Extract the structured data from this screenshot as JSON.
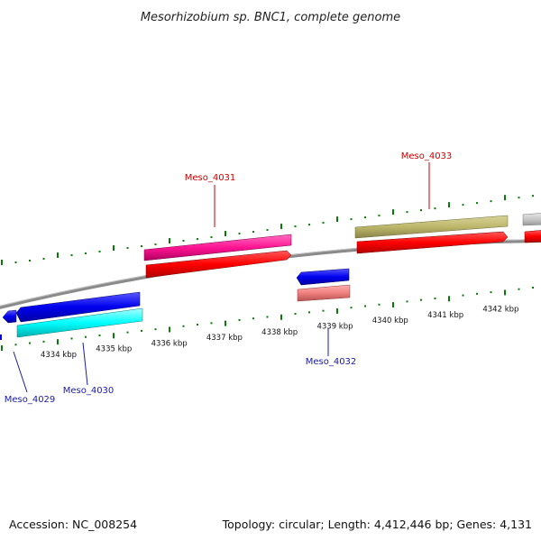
{
  "title": "Mesorhizobium sp. BNC1, complete genome",
  "footer": {
    "accession": "Accession: NC_008254",
    "summary": "Topology: circular; Length: 4,412,446 bp; Genes: 4,131"
  },
  "scale_labels": [
    "4334 kbp",
    "4335 kbp",
    "4336 kbp",
    "4337 kbp",
    "4338 kbp",
    "4339 kbp",
    "4340 kbp",
    "4341 kbp",
    "4342 kbp"
  ],
  "gene_labels": [
    {
      "text": "Meso_4031",
      "color": "#cc0000"
    },
    {
      "text": "Meso_4033",
      "color": "#cc0000"
    },
    {
      "text": "Meso_4032",
      "color": "#1a1aaa"
    },
    {
      "text": "Meso_4029",
      "color": "#1a1aaa"
    },
    {
      "text": "Meso_4030",
      "color": "#1a1aaa"
    }
  ],
  "colors": {
    "backbone": "#8a8a8a",
    "tick": "#0a7a0a",
    "forward_gene": "#ff0000",
    "forward_feature_pink": "#ff1493",
    "forward_feature_olive": "#bdb76b",
    "reverse_gene": "#0000ee",
    "reverse_feature_cyan": "#00ffff",
    "reverse_feature_salmon": "#f08080",
    "gray_feature": "#c8c8c8"
  }
}
